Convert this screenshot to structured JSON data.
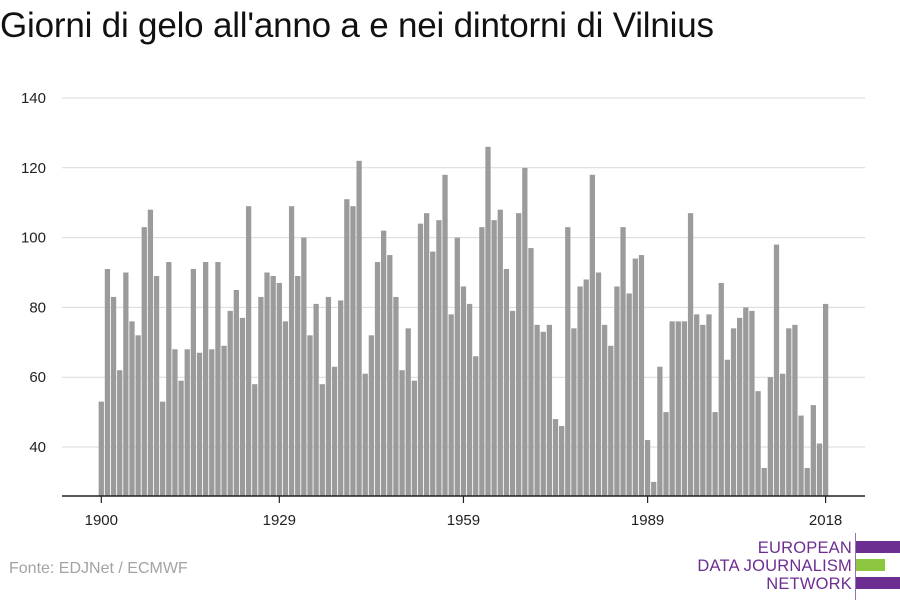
{
  "chart_data": {
    "type": "bar",
    "title": "Giorni di gelo all'anno a e nei dintorni di Vilnius",
    "xlabel": "",
    "ylabel": "",
    "x_start": 1900,
    "x_end": 2018,
    "x_ticks": [
      1900,
      1929,
      1959,
      1989,
      2018
    ],
    "y_ticks": [
      40,
      60,
      80,
      100,
      120,
      140
    ],
    "ylim": [
      25,
      140
    ],
    "grid": true,
    "bar_color": "#9b9b9b",
    "values": [
      53,
      91,
      83,
      62,
      90,
      76,
      72,
      103,
      108,
      89,
      53,
      93,
      68,
      59,
      68,
      91,
      67,
      93,
      68,
      93,
      69,
      79,
      85,
      77,
      109,
      58,
      83,
      90,
      89,
      87,
      76,
      109,
      89,
      100,
      72,
      81,
      58,
      83,
      63,
      82,
      111,
      109,
      122,
      61,
      72,
      93,
      102,
      95,
      83,
      62,
      74,
      59,
      104,
      107,
      96,
      105,
      118,
      78,
      100,
      86,
      81,
      66,
      103,
      126,
      105,
      108,
      91,
      79,
      107,
      120,
      97,
      75,
      73,
      75,
      48,
      46,
      103,
      74,
      86,
      88,
      118,
      90,
      75,
      69,
      86,
      103,
      84,
      94,
      95,
      42,
      30,
      63,
      50,
      76,
      76,
      76,
      107,
      78,
      75,
      78,
      50,
      87,
      65,
      74,
      77,
      80,
      79,
      56,
      34,
      60,
      98,
      61,
      74,
      75,
      49,
      34,
      52,
      41,
      81
    ]
  },
  "source": "Fonte: EDJNet / ECMWF",
  "logo": {
    "line1": "EUROPEAN",
    "line2": "DATA JOURNALISM",
    "line3": "NETWORK",
    "purple": "#6d2e91",
    "green": "#8cc63f"
  }
}
